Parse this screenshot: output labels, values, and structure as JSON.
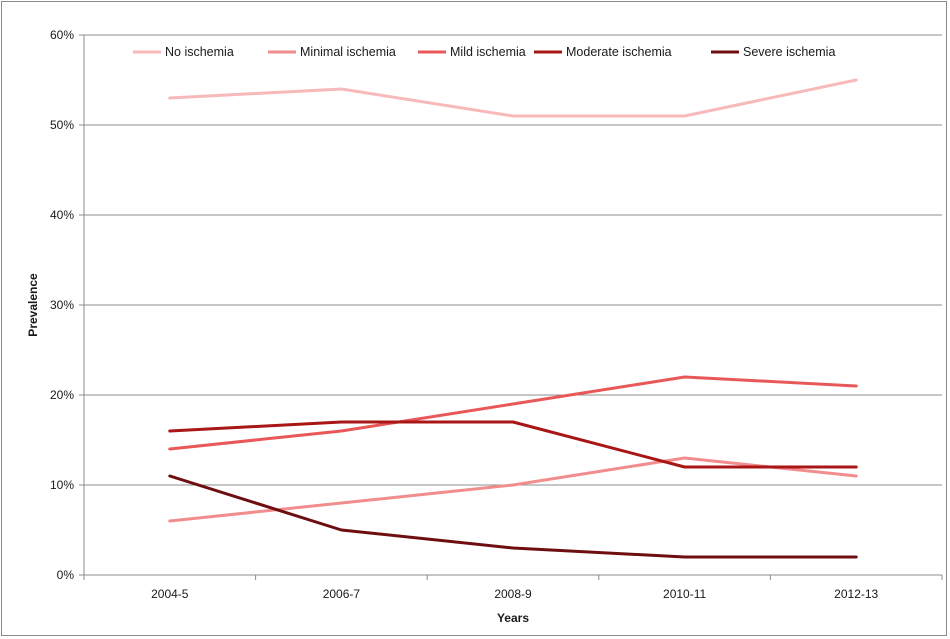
{
  "chart_data": {
    "type": "line",
    "title": "",
    "xlabel": "Years",
    "ylabel": "Prevalence",
    "categories": [
      "2004-5",
      "2006-7",
      "2008-9",
      "2010-11",
      "2012-13"
    ],
    "ylim": [
      0,
      60
    ],
    "yticks": [
      0,
      10,
      20,
      30,
      40,
      50,
      60
    ],
    "ytick_labels": [
      "0%",
      "10%",
      "20%",
      "30%",
      "40%",
      "50%",
      "60%"
    ],
    "grid": true,
    "legend_position": "top",
    "series": [
      {
        "name": "No ischemia",
        "color": "#f7b9b9",
        "values": [
          53,
          54,
          51,
          51,
          55
        ]
      },
      {
        "name": "Minimal ischemia",
        "color": "#f28d8d",
        "values": [
          6,
          8,
          10,
          13,
          11
        ]
      },
      {
        "name": "Mild ischemia",
        "color": "#e85858",
        "values": [
          14,
          16,
          19,
          22,
          21
        ]
      },
      {
        "name": "Moderate ischemia",
        "color": "#a81616",
        "values": [
          16,
          17,
          17,
          12,
          12
        ]
      },
      {
        "name": "Severe ischemia",
        "color": "#6e0e10",
        "values": [
          11,
          5,
          3,
          2,
          2
        ]
      }
    ]
  }
}
